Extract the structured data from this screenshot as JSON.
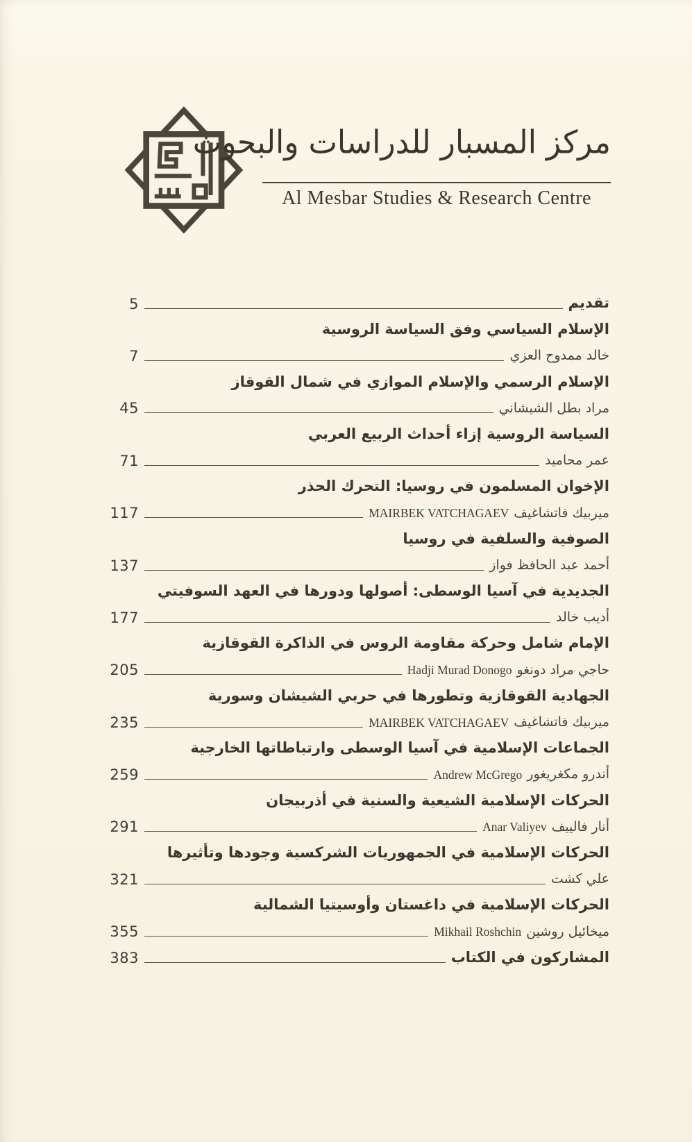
{
  "header": {
    "arabic_calligraphy": "مركز المسبار للدراسات والبحوث",
    "english_name": "Al Mesbar Studies & Research Centre"
  },
  "toc": {
    "entries": [
      {
        "kind": "simple",
        "title": "تقديم",
        "page": "5"
      },
      {
        "kind": "title",
        "title": "الإسلام السياسي وفق السياسة الروسية"
      },
      {
        "kind": "author",
        "author": "خالد ممدوح العزي",
        "latin": "",
        "page": "7"
      },
      {
        "kind": "title",
        "title": "الإسلام الرسمي والإسلام الموازي في شمال القوقاز"
      },
      {
        "kind": "author",
        "author": "مراد بطل الشيشاني",
        "latin": "",
        "page": "45"
      },
      {
        "kind": "title",
        "title": "السياسة الروسية إزاء أحداث الربيع العربي"
      },
      {
        "kind": "author",
        "author": "عمر محاميد",
        "latin": "",
        "page": "71"
      },
      {
        "kind": "title",
        "title": "الإخوان المسلمون في روسيا: التحرك الحذر"
      },
      {
        "kind": "author",
        "author": "ميربيك فاتشاغيف",
        "latin": "MAIRBEK VATCHAGAEV",
        "page": "117"
      },
      {
        "kind": "title",
        "title": "الصوفية والسلفية في روسيا"
      },
      {
        "kind": "author",
        "author": "أحمد عبد الحافظ فواز",
        "latin": "",
        "page": "137"
      },
      {
        "kind": "title",
        "title": "الجديدية في آسيا الوسطى: أصولها ودورها في العهد السوفيتي"
      },
      {
        "kind": "author",
        "author": "أديب خالد",
        "latin": "",
        "page": "177"
      },
      {
        "kind": "title",
        "title": "الإمام شامل وحركة مقاومة الروس في الذاكرة القوقازية"
      },
      {
        "kind": "author",
        "author": "حاجي مراد دونغو",
        "latin": "Hadji Murad Donogo",
        "page": "205"
      },
      {
        "kind": "title",
        "title": "الجهادية القوقازية وتطورها في حربي الشيشان وسورية"
      },
      {
        "kind": "author",
        "author": "ميربيك فاتشاغيف",
        "latin": "MAIRBEK VATCHAGAEV",
        "page": "235"
      },
      {
        "kind": "title",
        "title": "الجماعات الإسلامية في آسيا الوسطى وارتباطاتها الخارجية"
      },
      {
        "kind": "author",
        "author": "أندرو مكغريغور",
        "latin": "Andrew McGrego",
        "page": "259"
      },
      {
        "kind": "title",
        "title": "الحركات الإسلامية الشيعية والسنية في أذربيجان"
      },
      {
        "kind": "author",
        "author": "أنار فالييف",
        "latin": "Anar Valiyev",
        "page": "291"
      },
      {
        "kind": "title",
        "title": "الحركات الإسلامية في الجمهوريات الشركسية وجودها وتأثيرها"
      },
      {
        "kind": "author",
        "author": "علي كشت",
        "latin": "",
        "page": "321"
      },
      {
        "kind": "title",
        "title": "الحركات الإسلامية في داغستان وأوسيتيا الشمالية"
      },
      {
        "kind": "author",
        "author": "ميخائيل روشين",
        "latin": "Mikhail Roshchin",
        "page": "355"
      },
      {
        "kind": "simple",
        "title": "المشاركون في الكتاب",
        "page": "383"
      }
    ]
  },
  "colors": {
    "page_background": "#f8f3e4",
    "ink": "#3b362e",
    "leader_line": "#575147"
  }
}
